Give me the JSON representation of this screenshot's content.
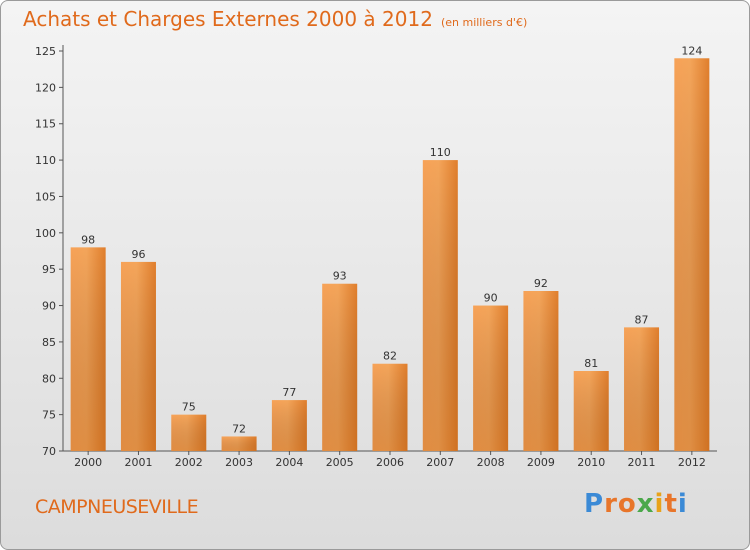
{
  "title": "Achats et Charges Externes 2000 à 2012",
  "subtitle": "(en milliers d'€)",
  "place": "CAMPNEUSEVILLE",
  "logo": {
    "letters": [
      "P",
      "r",
      "o",
      "x",
      "i",
      "t",
      "i"
    ],
    "colors": [
      "#3b8ad6",
      "#e8752a",
      "#e8752a",
      "#4aa84a",
      "#e8a21a",
      "#e8752a",
      "#3b8ad6"
    ]
  },
  "chart_data": {
    "type": "bar",
    "categories": [
      "2000",
      "2001",
      "2002",
      "2003",
      "2004",
      "2005",
      "2006",
      "2007",
      "2008",
      "2009",
      "2010",
      "2011",
      "2012"
    ],
    "values": [
      98,
      96,
      75,
      72,
      77,
      93,
      82,
      110,
      90,
      92,
      81,
      87,
      124
    ],
    "ylim": [
      70,
      125
    ],
    "yticks": [
      70,
      75,
      80,
      85,
      90,
      95,
      100,
      105,
      110,
      115,
      120,
      125
    ],
    "grid": false,
    "bar_color": "#f0913a"
  }
}
